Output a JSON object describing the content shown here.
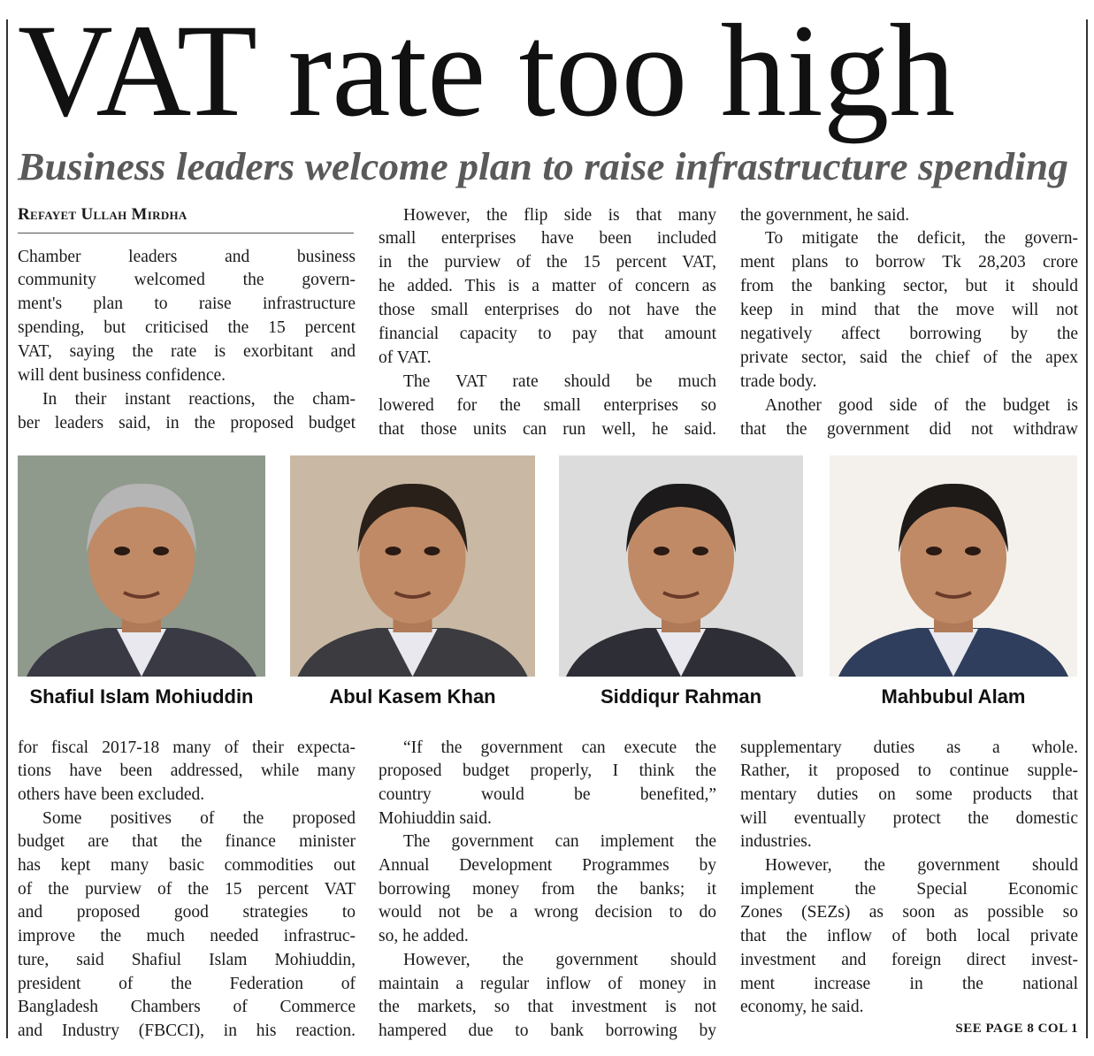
{
  "header": {
    "headline": "VAT rate too high",
    "subheadline": "Business leaders welcome plan to raise infrastructure spending",
    "byline": "Refayet Ullah Mirdha"
  },
  "top_columns": [
    {
      "paragraphs": [
        [
          "Chamber leaders and business",
          "community welcomed the govern-",
          "ment's plan to raise infrastructure",
          "spending, but criticised the 15 percent",
          "VAT, saying the rate is exorbitant and",
          "will dent business confidence."
        ],
        [
          "In their instant reactions, the cham-",
          "ber leaders said, in the proposed budget"
        ]
      ]
    },
    {
      "paragraphs": [
        [
          "However, the flip side is that many",
          "small enterprises have been included",
          "in the purview of the 15 percent VAT,",
          "he added. This is a matter of concern as",
          "those small enterprises do not have the",
          "financial capacity to pay that amount",
          "of VAT."
        ],
        [
          "The VAT rate should be much",
          "lowered for the small enterprises so",
          "that those units can run well, he said."
        ]
      ]
    },
    {
      "paragraphs": [
        [
          "the government, he said."
        ],
        [
          "To mitigate the deficit, the govern-",
          "ment plans to borrow Tk 28,203 crore",
          "from the banking sector, but it should",
          "keep in mind that the move will not",
          "negatively affect borrowing by the",
          "private sector, said the chief of the apex",
          "trade body."
        ],
        [
          "Another good side of the budget is",
          "that the government did not withdraw"
        ]
      ]
    }
  ],
  "photos": [
    {
      "caption": "Shafiul Islam Mohiuddin"
    },
    {
      "caption": "Abul Kasem Khan"
    },
    {
      "caption": "Siddiqur Rahman"
    },
    {
      "caption": "Mahbubul Alam"
    }
  ],
  "bottom_columns": [
    {
      "paragraphs": [
        [
          "for fiscal 2017-18 many of their expecta-",
          "tions have been addressed, while many",
          "others have been excluded."
        ],
        [
          "Some positives of the proposed",
          "budget are that the finance minister",
          "has kept many basic commodities out",
          "of the purview of the 15 percent VAT",
          "and proposed good strategies to",
          "improve the much needed infrastruc-",
          "ture, said Shafiul Islam Mohiuddin,",
          "president of the Federation of",
          "Bangladesh Chambers of Commerce",
          "and Industry (FBCCI), in his reaction."
        ]
      ]
    },
    {
      "paragraphs": [
        [
          "“If the government can execute the",
          "proposed budget properly, I think the",
          "country would be benefited,”",
          "Mohiuddin said."
        ],
        [
          "The government can implement the",
          "Annual Development Programmes by",
          "borrowing money from the banks; it",
          "would not be a wrong decision to do",
          "so, he added."
        ],
        [
          "However, the government should",
          "maintain a regular inflow of money in",
          "the markets, so that investment is not",
          "hampered due to bank borrowing by"
        ]
      ]
    },
    {
      "paragraphs": [
        [
          "supplementary duties as a whole.",
          "Rather, it proposed to continue supple-",
          "mentary duties on some products that",
          "will eventually protect the domestic",
          "industries."
        ],
        [
          "However, the government should",
          "implement the Special Economic",
          "Zones (SEZs) as soon as possible so",
          "that the inflow of both local private",
          "investment and foreign direct invest-",
          "ment increase in the national",
          "economy, he said."
        ]
      ]
    }
  ],
  "footer": "SEE PAGE 8 COL 1"
}
